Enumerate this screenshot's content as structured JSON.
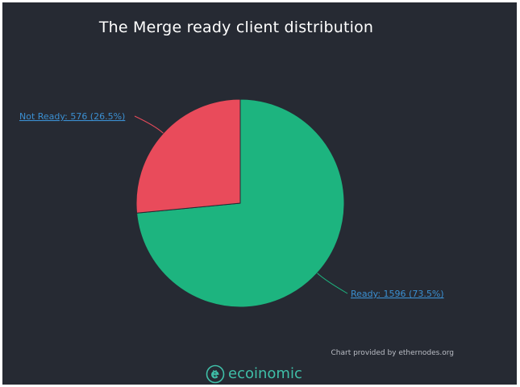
{
  "chart_data": {
    "type": "pie",
    "title": "The Merge ready client distribution",
    "slices": [
      {
        "name": "Ready",
        "value": 1596,
        "percent": 73.5,
        "label": "Ready: 1596 (73.5%)",
        "color": "#1db47f"
      },
      {
        "name": "Not Ready",
        "value": 576,
        "percent": 26.5,
        "label": "Not Ready: 576 (26.5%)",
        "color": "#e94b5b"
      }
    ],
    "credits": "Chart provided by ethernodes.org"
  },
  "watermark": {
    "text": "ecoinomic",
    "icon": "ecoinomic-logo-icon",
    "color": "#3fbfa8"
  },
  "colors": {
    "background": "#262a33",
    "title": "#ffffff",
    "label_link": "#3b8fd1"
  }
}
